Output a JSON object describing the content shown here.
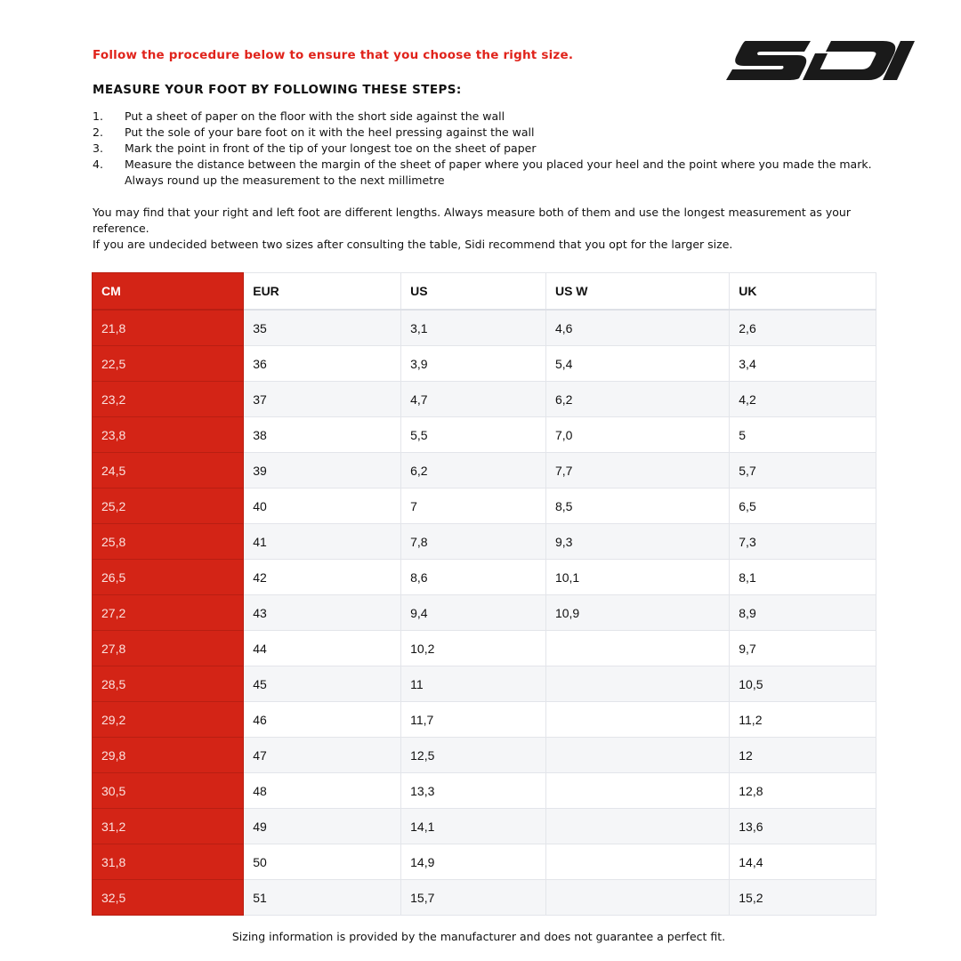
{
  "intro": "Follow the procedure below to ensure that you choose the right size.",
  "logo_text": "SIDI",
  "steps_title": "MEASURE YOUR FOOT BY FOLLOWING THESE STEPS:",
  "steps": [
    {
      "n": "1.",
      "text": "Put a sheet of paper on the floor with the short side against the wall"
    },
    {
      "n": "2.",
      "text": "Put the sole of your bare foot on it with the heel pressing against the wall"
    },
    {
      "n": "3.",
      "text": "Mark the point in front of the tip of your longest toe on the sheet of paper"
    },
    {
      "n": "4.",
      "text": "Measure the distance between the margin of the sheet of paper where you placed your heel and the point where you made the mark. Always round up the measurement to the next millimetre"
    }
  ],
  "notes": [
    "You may find that your right and left foot are different lengths. Always measure both of them and use the longest measurement as your reference.",
    "If you are undecided between two sizes after consulting the table, Sidi recommend that you opt for the larger size."
  ],
  "table": {
    "headers": [
      "CM",
      "EUR",
      "US",
      "US W",
      "UK"
    ],
    "rows": [
      [
        "21,8",
        "35",
        "3,1",
        "4,6",
        "2,6"
      ],
      [
        "22,5",
        "36",
        "3,9",
        "5,4",
        "3,4"
      ],
      [
        "23,2",
        "37",
        "4,7",
        "6,2",
        "4,2"
      ],
      [
        "23,8",
        "38",
        "5,5",
        "7,0",
        "5"
      ],
      [
        "24,5",
        "39",
        "6,2",
        "7,7",
        "5,7"
      ],
      [
        "25,2",
        "40",
        "7",
        "8,5",
        "6,5"
      ],
      [
        "25,8",
        "41",
        "7,8",
        "9,3",
        "7,3"
      ],
      [
        "26,5",
        "42",
        "8,6",
        "10,1",
        "8,1"
      ],
      [
        "27,2",
        "43",
        "9,4",
        "10,9",
        "8,9"
      ],
      [
        "27,8",
        "44",
        "10,2",
        "",
        "9,7"
      ],
      [
        "28,5",
        "45",
        "11",
        "",
        "10,5"
      ],
      [
        "29,2",
        "46",
        "11,7",
        "",
        "11,2"
      ],
      [
        "29,8",
        "47",
        "12,5",
        "",
        "12"
      ],
      [
        "30,5",
        "48",
        "13,3",
        "",
        "12,8"
      ],
      [
        "31,2",
        "49",
        "14,1",
        "",
        "13,6"
      ],
      [
        "31,8",
        "50",
        "14,9",
        "",
        "14,4"
      ],
      [
        "32,5",
        "51",
        "15,7",
        "",
        "15,2"
      ]
    ]
  },
  "footer": "Sizing information is provided by the manufacturer and does not guarantee a perfect fit.",
  "colors": {
    "accent": "#d32416",
    "intro_text": "#e0231b"
  }
}
